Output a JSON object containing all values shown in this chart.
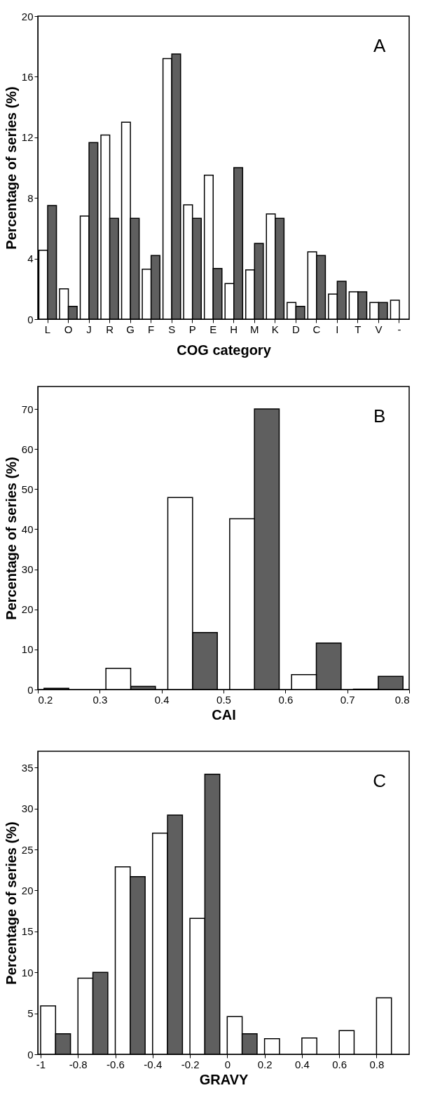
{
  "chart_data": [
    {
      "type": "bar",
      "xlabel": "COG category",
      "ylabel": "Percentage of series (%)",
      "annotations": [
        "A"
      ],
      "categories": [
        "L",
        "O",
        "J",
        "R",
        "G",
        "F",
        "S",
        "P",
        "E",
        "H",
        "M",
        "K",
        "D",
        "C",
        "I",
        "T",
        "V",
        "-"
      ],
      "series": [
        {
          "color": "#ffffff",
          "values": [
            4.55,
            2.0,
            6.8,
            12.15,
            13.0,
            3.3,
            17.2,
            7.55,
            9.5,
            2.35,
            3.25,
            6.95,
            1.1,
            4.45,
            1.65,
            1.8,
            1.1,
            1.25
          ]
        },
        {
          "color": "#5f5f5f",
          "values": [
            7.5,
            0.85,
            11.65,
            6.65,
            6.65,
            4.2,
            17.5,
            6.65,
            3.35,
            10.0,
            5.0,
            6.65,
            0.85,
            4.2,
            2.5,
            1.8,
            1.1,
            null
          ]
        }
      ],
      "ylim": [
        0,
        20
      ],
      "yticks": [
        0,
        4,
        8,
        12,
        16,
        20
      ],
      "grid": false,
      "legend": false
    },
    {
      "type": "bar",
      "xlabel": "CAI",
      "ylabel": "Percentage of series (%)",
      "annotations": [
        "B"
      ],
      "series": [
        {
          "color": "#5f5f5f",
          "x": [
            0.23,
            0.37,
            0.47,
            0.57,
            0.67,
            0.77
          ],
          "values": [
            0.3,
            0.8,
            14.2,
            70.0,
            11.6,
            3.3
          ]
        },
        {
          "color": "#ffffff",
          "x": [
            0.33,
            0.43,
            0.53,
            0.63,
            0.73
          ],
          "values": [
            5.3,
            47.9,
            42.6,
            3.7,
            0.1
          ]
        }
      ],
      "xlim": [
        0.2,
        0.8
      ],
      "xticks": [
        0.2,
        0.3,
        0.4,
        0.5,
        0.6,
        0.7,
        0.8
      ],
      "ylim": [
        0,
        75.6
      ],
      "yticks": [
        0,
        10,
        20,
        30,
        40,
        50,
        60,
        70
      ],
      "grid": false,
      "legend": false
    },
    {
      "type": "bar",
      "xlabel": "GRAVY",
      "ylabel": "Percentage of series (%)",
      "annotations": [
        "C"
      ],
      "series": [
        {
          "color": "#ffffff",
          "x": [
            -0.96,
            -0.76,
            -0.56,
            -0.36,
            -0.16,
            0.04,
            0.24,
            0.44,
            0.64,
            0.84
          ],
          "values": [
            5.9,
            9.3,
            22.9,
            27.0,
            16.6,
            4.6,
            1.9,
            2.0,
            2.9,
            6.9
          ]
        },
        {
          "color": "#5f5f5f",
          "x": [
            -0.88,
            -0.68,
            -0.48,
            -0.28,
            -0.08,
            0.12
          ],
          "values": [
            2.5,
            10.0,
            21.7,
            29.2,
            34.2,
            2.5
          ]
        }
      ],
      "xlim": [
        -1.015,
        0.975
      ],
      "xticks": [
        -1,
        -0.8,
        -0.6,
        -0.4,
        -0.2,
        0,
        0.2,
        0.4,
        0.6,
        0.8
      ],
      "ylim": [
        0,
        37
      ],
      "yticks": [
        0,
        5,
        10,
        15,
        20,
        25,
        30,
        35
      ],
      "grid": false,
      "legend": false
    }
  ]
}
